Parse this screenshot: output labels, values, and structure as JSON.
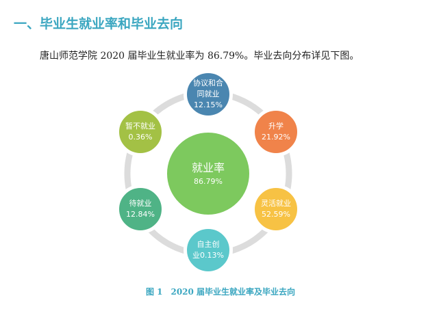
{
  "section_heading": "一、毕业生就业率和毕业去向",
  "intro_text": "唐山师范学院 2020 届毕业生就业率为 86.79%。毕业去向分布详见下图。",
  "diagram": {
    "center": {
      "label": "就业率",
      "value": "86.79%",
      "color": "#7dc95e"
    },
    "nodes": [
      {
        "label": "协议和合同就业",
        "line1": "协议和合",
        "line2": "同就业",
        "value": "12.15%",
        "color": "#4a86b0"
      },
      {
        "label": "升学",
        "line1": "升学",
        "line2": "",
        "value": "21.92%",
        "color": "#f0834a"
      },
      {
        "label": "灵活就业",
        "line1": "灵活就业",
        "line2": "",
        "value": "52.59%",
        "color": "#f7c244"
      },
      {
        "label": "自主创业",
        "line1": "自主创",
        "line2": "业0.13%",
        "value": "0.13%",
        "color": "#5bc8cb"
      },
      {
        "label": "待就业",
        "line1": "待就业",
        "line2": "",
        "value": "12.84%",
        "color": "#4fb386"
      },
      {
        "label": "暂不就业",
        "line1": "暂不就业",
        "line2": "",
        "value": "0.36%",
        "color": "#a3c145"
      }
    ],
    "ring_color": "#dcdcdc"
  },
  "caption": {
    "number": "图 1",
    "text": "2020 届毕业生就业率及毕业去向"
  }
}
